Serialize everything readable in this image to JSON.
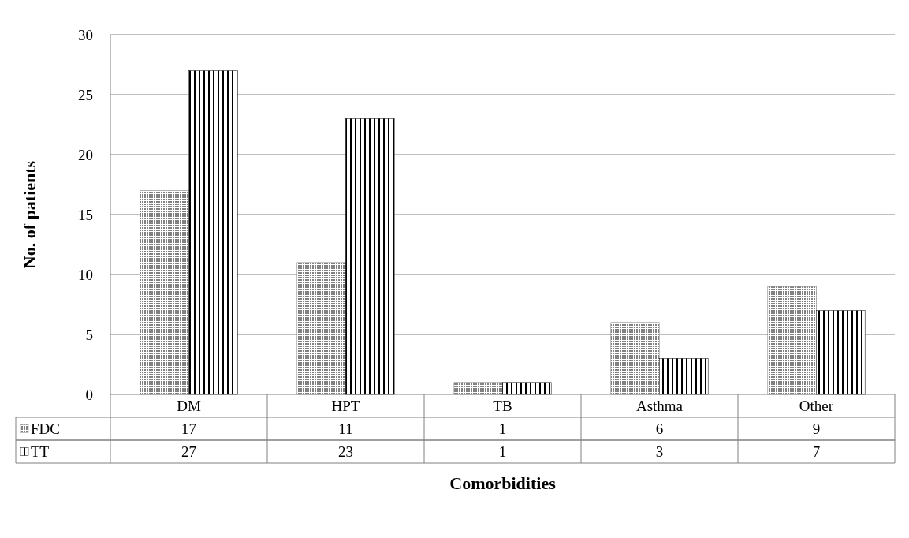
{
  "chart_data": {
    "type": "bar",
    "xlabel": "Comorbidities",
    "ylabel": "No. of patients",
    "categories": [
      "DM",
      "HPT",
      "TB",
      "Asthma",
      "Other"
    ],
    "series": [
      {
        "name": "FDC",
        "color": "#808080",
        "values": [
          17,
          11,
          1,
          6,
          9
        ]
      },
      {
        "name": "TT",
        "color": "#000000",
        "values": [
          27,
          23,
          1,
          3,
          7
        ]
      }
    ],
    "ylim": [
      0,
      30
    ],
    "yticks": [
      0,
      5,
      10,
      15,
      20,
      25,
      30
    ],
    "grid": "y",
    "legend": "bottom",
    "data_labels": true
  }
}
